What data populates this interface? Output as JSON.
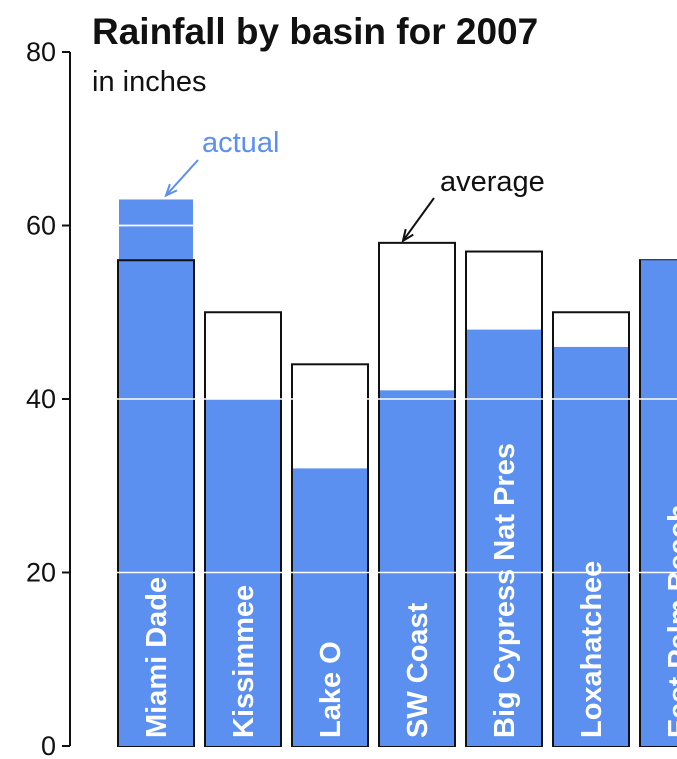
{
  "chart_data": {
    "type": "bar",
    "title": "Rainfall by basin for 2007",
    "subtitle": "in inches",
    "xlabel": "",
    "ylabel": "",
    "ylim": [
      0,
      80
    ],
    "yticks": [
      0,
      20,
      40,
      60,
      80
    ],
    "grid": true,
    "categories": [
      "Miami Dade",
      "Kissimmee",
      "Lake O",
      "SW Coast",
      "Big Cypress Nat Pres",
      "Loxahatchee",
      "East Palm Beach"
    ],
    "series": [
      {
        "name": "average",
        "values": [
          56,
          50,
          44,
          58,
          57,
          50,
          56
        ]
      },
      {
        "name": "actual",
        "values": [
          63,
          40,
          32,
          41,
          48,
          46,
          56
        ]
      }
    ],
    "annotations": [
      {
        "text": "actual",
        "target_category": "Miami Dade",
        "target_series": "actual"
      },
      {
        "text": "average",
        "target_category": "SW Coast",
        "target_series": "average"
      }
    ],
    "colors": {
      "actual": "#5b8ff0",
      "average_outline": "#111111",
      "axis": "#111111",
      "grid": "#ffffff"
    }
  }
}
